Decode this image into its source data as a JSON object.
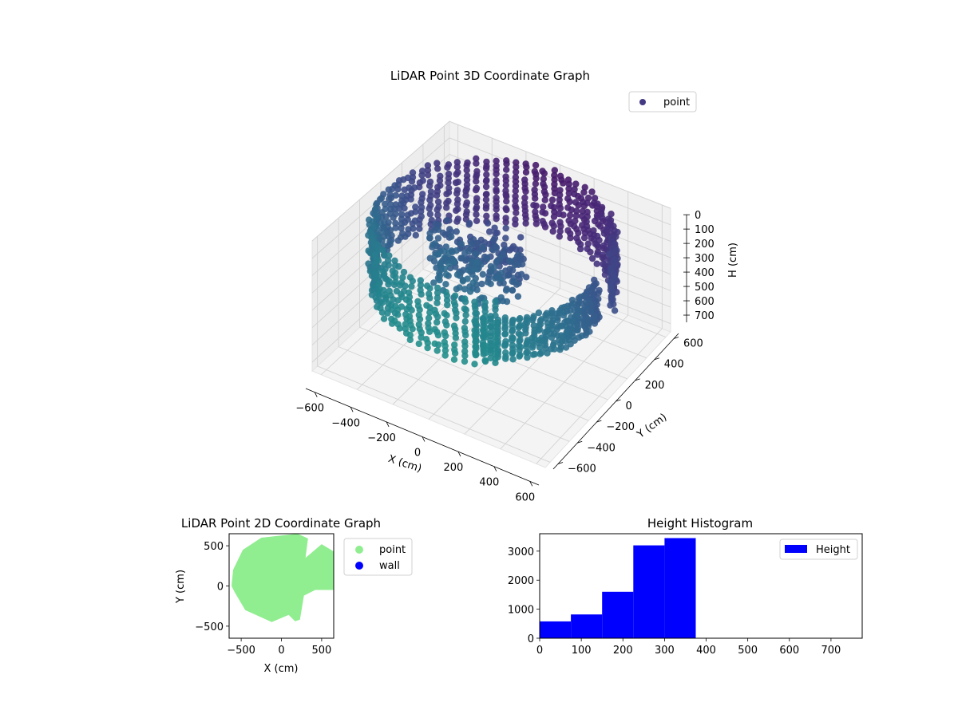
{
  "chart_data": [
    {
      "type": "scatter",
      "projection": "3d",
      "title": "LiDAR Point 3D Coordinate Graph",
      "xlabel": "X (cm)",
      "ylabel": "Y (cm)",
      "zlabel": "H (cm)",
      "x_ticks": [
        -600,
        -400,
        -200,
        0,
        200,
        400,
        600
      ],
      "y_ticks": [
        -600,
        -400,
        -200,
        0,
        200,
        400,
        600
      ],
      "z_ticks": [
        0,
        100,
        200,
        300,
        400,
        500,
        600,
        700
      ],
      "xlim": [
        -650,
        650
      ],
      "ylim": [
        -650,
        650
      ],
      "zlim": [
        750,
        0
      ],
      "z_inverted": true,
      "grid": true,
      "legend": {
        "placement": "top-right",
        "entries": [
          {
            "label": "point",
            "color": "#443983"
          }
        ]
      },
      "colormap": "viridis",
      "series": [
        {
          "name": "point",
          "shape": "outer-wall-arc",
          "radius": 620,
          "angle_range_deg": [
            20,
            300
          ],
          "height_range": [
            20,
            380
          ]
        },
        {
          "name": "point",
          "shape": "right-wall-segment",
          "radius": 560,
          "angle_range_deg": [
            -70,
            10
          ],
          "height_range": [
            150,
            380
          ]
        },
        {
          "name": "point",
          "shape": "central-cluster",
          "center": [
            -100,
            0
          ],
          "height_range": [
            100,
            380
          ]
        }
      ]
    },
    {
      "type": "scatter",
      "title": "LiDAR Point 2D Coordinate Graph",
      "xlabel": "X (cm)",
      "ylabel": "Y (cm)",
      "x_ticks": [
        -500,
        0,
        500
      ],
      "y_ticks": [
        -500,
        0,
        500
      ],
      "xlim": [
        -650,
        650
      ],
      "ylim": [
        -650,
        650
      ],
      "grid": false,
      "legend": {
        "placement": "outside-right",
        "entries": [
          {
            "label": "point",
            "color": "#90ee90"
          },
          {
            "label": "wall",
            "color": "#0000ff"
          }
        ]
      },
      "series": [
        {
          "name": "point",
          "color": "#90ee90",
          "shape": "filled-region",
          "outline": [
            [
              -620,
              0
            ],
            [
              -600,
              200
            ],
            [
              -480,
              450
            ],
            [
              -250,
              600
            ],
            [
              200,
              650
            ],
            [
              330,
              590
            ],
            [
              300,
              350
            ],
            [
              500,
              520
            ],
            [
              650,
              430
            ],
            [
              650,
              -50
            ],
            [
              420,
              -50
            ],
            [
              280,
              -120
            ],
            [
              230,
              -420
            ],
            [
              170,
              -440
            ],
            [
              90,
              -360
            ],
            [
              -120,
              -450
            ],
            [
              -450,
              -300
            ],
            [
              -580,
              -80
            ],
            [
              -620,
              0
            ]
          ]
        },
        {
          "name": "wall",
          "color": "#0000ff",
          "values": []
        }
      ]
    },
    {
      "type": "bar",
      "subtype": "histogram",
      "title": "Height Histogram",
      "xlabel": "",
      "ylabel": "",
      "bin_edges": [
        0,
        75,
        150,
        225,
        300,
        375
      ],
      "values": [
        580,
        820,
        1600,
        3200,
        3450
      ],
      "xlim": [
        0,
        775
      ],
      "ylim": [
        0,
        3600
      ],
      "x_ticks": [
        0,
        100,
        200,
        300,
        400,
        500,
        600,
        700
      ],
      "y_ticks": [
        0,
        1000,
        2000,
        3000
      ],
      "color": "#0000ff",
      "legend": {
        "placement": "top-right",
        "entries": [
          {
            "label": "Height",
            "color": "#0000ff"
          }
        ]
      }
    }
  ]
}
